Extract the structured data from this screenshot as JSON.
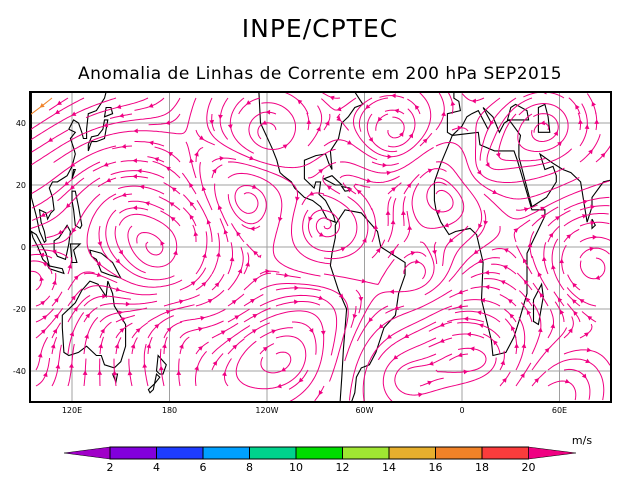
{
  "header": {
    "title": "INPE/CPTEC",
    "subtitle": "Anomalia de Linhas de Corrente em 200 hPa SEP2015"
  },
  "map": {
    "lon_range": [
      100,
      450
    ],
    "lat_range": [
      -50,
      50
    ],
    "lon_labels": [
      {
        "lon": 120,
        "label": "120E"
      },
      {
        "lon": 180,
        "label": "180"
      },
      {
        "lon": 240,
        "label": "120W"
      },
      {
        "lon": 300,
        "label": "60W"
      },
      {
        "lon": 360,
        "label": "0"
      },
      {
        "lon": 420,
        "label": "60E"
      }
    ],
    "lat_labels": [
      {
        "lat": 40,
        "label": "40"
      },
      {
        "lat": 20,
        "label": "20"
      },
      {
        "lat": 0,
        "label": "0"
      },
      {
        "lat": -20,
        "label": "-20"
      },
      {
        "lat": -40,
        "label": "-40"
      }
    ],
    "grid_color": "#a0a0a0",
    "coast_color": "#000000"
  },
  "colorbar": {
    "unit": "m/s",
    "levels": [
      "2",
      "4",
      "6",
      "8",
      "10",
      "12",
      "14",
      "16",
      "18",
      "20"
    ],
    "colors": [
      "#a000c8",
      "#8200dc",
      "#1e3cff",
      "#00a0ff",
      "#00d28c",
      "#00dc00",
      "#a0e632",
      "#e6af2d",
      "#f08228",
      "#fa3c3c",
      "#f00082"
    ]
  }
}
